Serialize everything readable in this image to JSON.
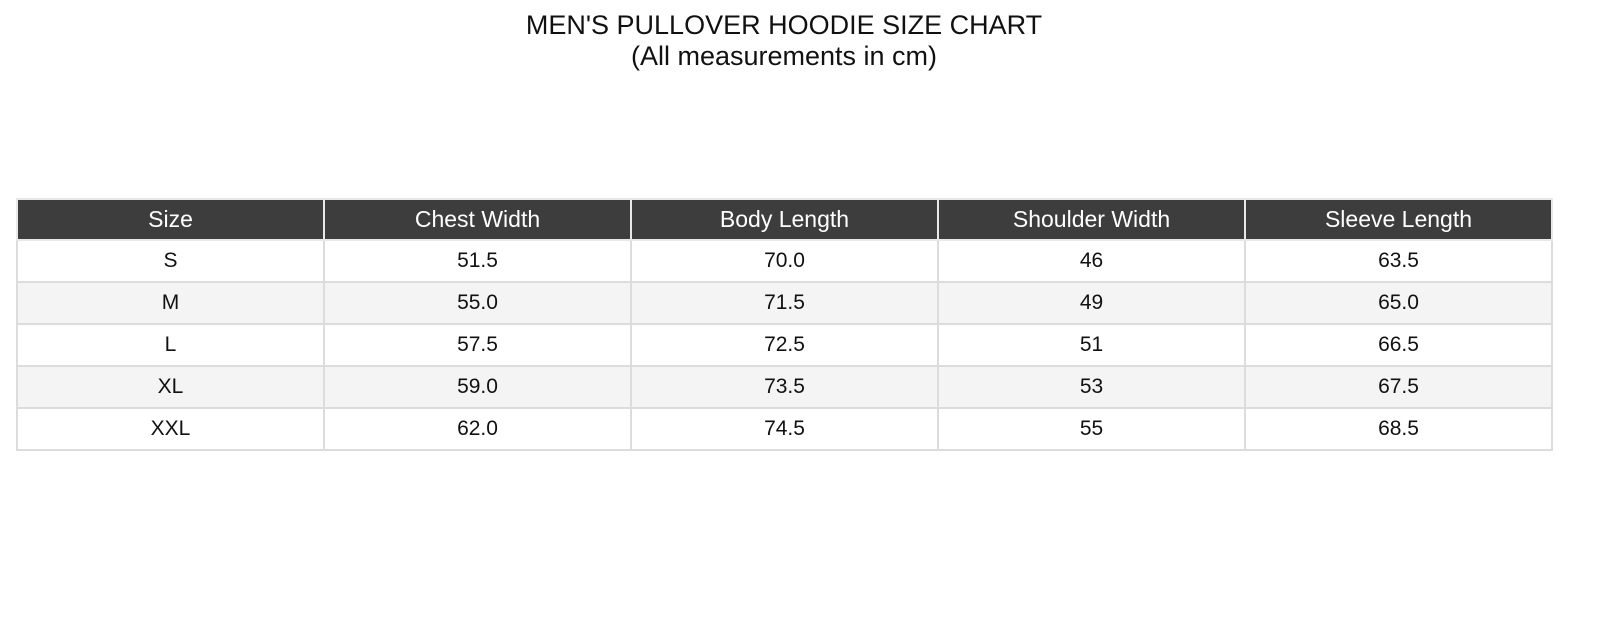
{
  "title": "MEN'S PULLOVER HOODIE SIZE CHART",
  "subtitle": "(All measurements in cm)",
  "table": {
    "headers": [
      "Size",
      "Chest Width",
      "Body Length",
      "Shoulder Width",
      "Sleeve Length"
    ],
    "rows": [
      [
        "S",
        "51.5",
        "70.0",
        "46",
        "63.5"
      ],
      [
        "M",
        "55.0",
        "71.5",
        "49",
        "65.0"
      ],
      [
        "L",
        "57.5",
        "72.5",
        "51",
        "66.5"
      ],
      [
        "XL",
        "59.0",
        "73.5",
        "53",
        "67.5"
      ],
      [
        "XXL",
        "62.0",
        "74.5",
        "55",
        "68.5"
      ]
    ]
  },
  "colors": {
    "header_bg": "#3d3d3d",
    "stripe_bg": "#f4f4f4",
    "border": "#dcdcdc"
  }
}
